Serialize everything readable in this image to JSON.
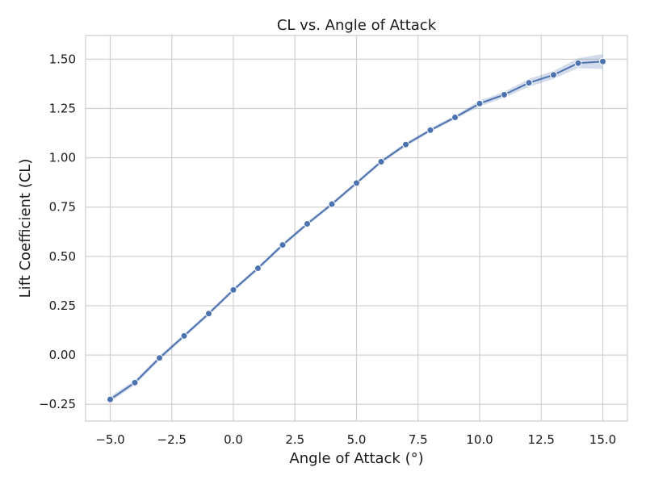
{
  "chart_data": {
    "type": "line",
    "title": "CL vs. Angle of Attack",
    "xlabel": "Angle of Attack (°)",
    "ylabel": "Lift Coefficient (CL)",
    "xlim": [
      -6,
      16
    ],
    "ylim": [
      -0.335,
      1.62
    ],
    "x_ticks": [
      -5.0,
      -2.5,
      0.0,
      2.5,
      5.0,
      7.5,
      10.0,
      12.5,
      15.0
    ],
    "x_tick_labels": [
      "−5.0",
      "−2.5",
      "0.0",
      "2.5",
      "5.0",
      "7.5",
      "10.0",
      "12.5",
      "15.0"
    ],
    "y_ticks": [
      -0.25,
      0.0,
      0.25,
      0.5,
      0.75,
      1.0,
      1.25,
      1.5
    ],
    "y_tick_labels": [
      "−0.25",
      "0.00",
      "0.25",
      "0.50",
      "0.75",
      "1.00",
      "1.25",
      "1.50"
    ],
    "grid": true,
    "series": [
      {
        "color": "#4c72b0",
        "band_color": "#4c72b0",
        "x": [
          -5,
          -4,
          -3,
          -2,
          -1,
          0,
          1,
          2,
          3,
          4,
          5,
          6,
          7,
          8,
          9,
          10,
          11,
          12,
          13,
          14,
          15
        ],
        "y": [
          -0.225,
          -0.14,
          -0.015,
          0.097,
          0.21,
          0.33,
          0.44,
          0.558,
          0.665,
          0.765,
          0.872,
          0.98,
          1.067,
          1.14,
          1.205,
          1.275,
          1.32,
          1.38,
          1.42,
          1.48,
          1.488
        ],
        "lower": [
          -0.24,
          -0.152,
          -0.027,
          0.087,
          0.2,
          0.32,
          0.43,
          0.548,
          0.655,
          0.755,
          0.862,
          0.97,
          1.057,
          1.13,
          1.195,
          1.26,
          1.305,
          1.36,
          1.4,
          1.455,
          1.45
        ],
        "upper": [
          -0.21,
          -0.128,
          -0.003,
          0.107,
          0.22,
          0.34,
          0.45,
          0.568,
          0.675,
          0.775,
          0.882,
          0.99,
          1.077,
          1.15,
          1.215,
          1.29,
          1.335,
          1.4,
          1.44,
          1.505,
          1.526
        ]
      }
    ]
  }
}
